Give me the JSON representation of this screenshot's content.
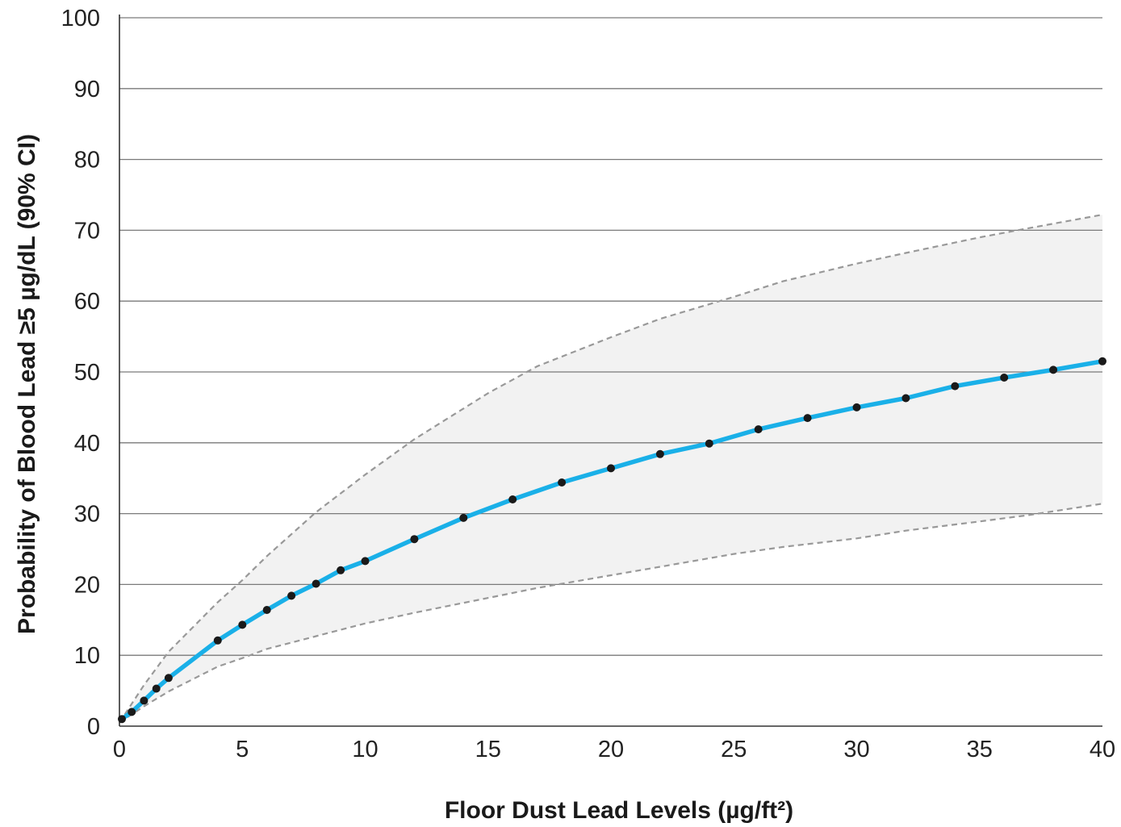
{
  "chart_data": {
    "type": "line",
    "title": "",
    "xlabel": "Floor Dust Lead Levels (µg/ft²)",
    "ylabel": "Probability of Blood Lead ≥5 µg/dL (90% CI)",
    "xlim": [
      0,
      40
    ],
    "ylim": [
      0,
      100
    ],
    "x_ticks": [
      "0",
      "5",
      "10",
      "15",
      "20",
      "25",
      "30",
      "35",
      "40"
    ],
    "y_ticks": [
      "0",
      "10",
      "20",
      "30",
      "40",
      "50",
      "60",
      "70",
      "80",
      "90",
      "100"
    ],
    "grid": "horizontal",
    "legend": "none",
    "series": [
      {
        "role": "estimate",
        "color": "#1ab0e8",
        "marker_color": "#1a1a1a",
        "x": [
          0.1,
          0.5,
          1,
          1.5,
          2,
          4,
          5,
          6,
          7,
          8,
          9,
          10,
          12,
          14,
          16,
          18,
          20,
          22,
          24,
          26,
          28,
          30,
          32,
          34,
          36,
          38,
          40
        ],
        "y": [
          1.0,
          2.0,
          3.6,
          5.3,
          6.8,
          12.1,
          14.3,
          16.4,
          18.4,
          20.1,
          22.0,
          23.3,
          26.4,
          29.4,
          32.0,
          34.4,
          36.4,
          38.4,
          39.9,
          41.9,
          43.5,
          45.0,
          46.3,
          48.0,
          49.2,
          50.3,
          51.5
        ]
      },
      {
        "role": "upper-bound",
        "color": "#999999",
        "x": [
          0,
          1,
          2,
          4,
          5,
          6,
          8,
          10,
          12,
          15,
          17,
          20,
          22,
          25,
          27,
          30,
          32,
          35,
          37,
          40
        ],
        "y": [
          0.5,
          5.8,
          10.5,
          17.5,
          20.6,
          24.0,
          30.2,
          35.5,
          40.5,
          47.0,
          50.8,
          54.9,
          57.5,
          60.6,
          62.8,
          65.3,
          66.8,
          69.0,
          70.3,
          72.2
        ]
      },
      {
        "role": "lower-bound",
        "color": "#999999",
        "x": [
          0,
          1,
          2,
          4,
          5,
          6,
          8,
          10,
          12,
          15,
          17,
          20,
          22,
          25,
          27,
          30,
          32,
          35,
          37,
          40
        ],
        "y": [
          0.5,
          2.8,
          4.9,
          8.4,
          9.6,
          10.9,
          12.7,
          14.5,
          16.0,
          18.1,
          19.5,
          21.3,
          22.5,
          24.3,
          25.3,
          26.5,
          27.6,
          28.9,
          29.8,
          31.4
        ]
      }
    ],
    "band_fill": "#f2f2f2",
    "grid_color": "#7a7a7a"
  }
}
